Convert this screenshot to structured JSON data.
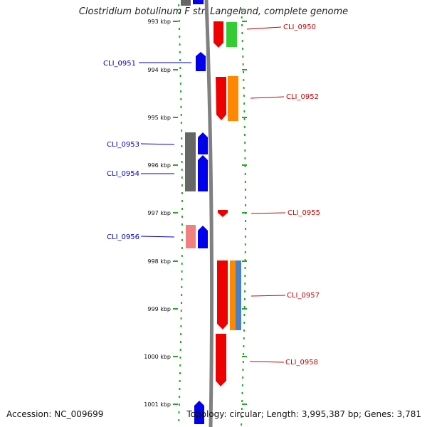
{
  "title": "Clostridium botulinum F str. Langeland, complete genome",
  "footer": {
    "accession": "Accession: NC_009699",
    "summary": "Topology: circular; Length: 3,995,387 bp; Genes: 3,781"
  },
  "ticks": [
    "993 kbp",
    "994 kbp",
    "995 kbp",
    "996 kbp",
    "997 kbp",
    "998 kbp",
    "999 kbp",
    "1000 kbp",
    "1001 kbp"
  ],
  "gene_labels_left": [
    "CLI_0951",
    "CLI_0953",
    "CLI_0954",
    "CLI_0956"
  ],
  "gene_labels_right": [
    "CLI_0950",
    "CLI_0952",
    "CLI_0955",
    "CLI_0957",
    "CLI_0958"
  ],
  "colors": {
    "forward": "#ee0000",
    "reverse": "#0000ee",
    "backbone": "#808080",
    "gc_green": "#22aa22",
    "cog_orange": "#ff8800",
    "cog_green": "#33cc33",
    "cog_gray": "#666666",
    "cog_pink": "#f08080",
    "cog_blue": "#4a7fc1",
    "label_left": "#0000c8",
    "label_right": "#c80000"
  }
}
